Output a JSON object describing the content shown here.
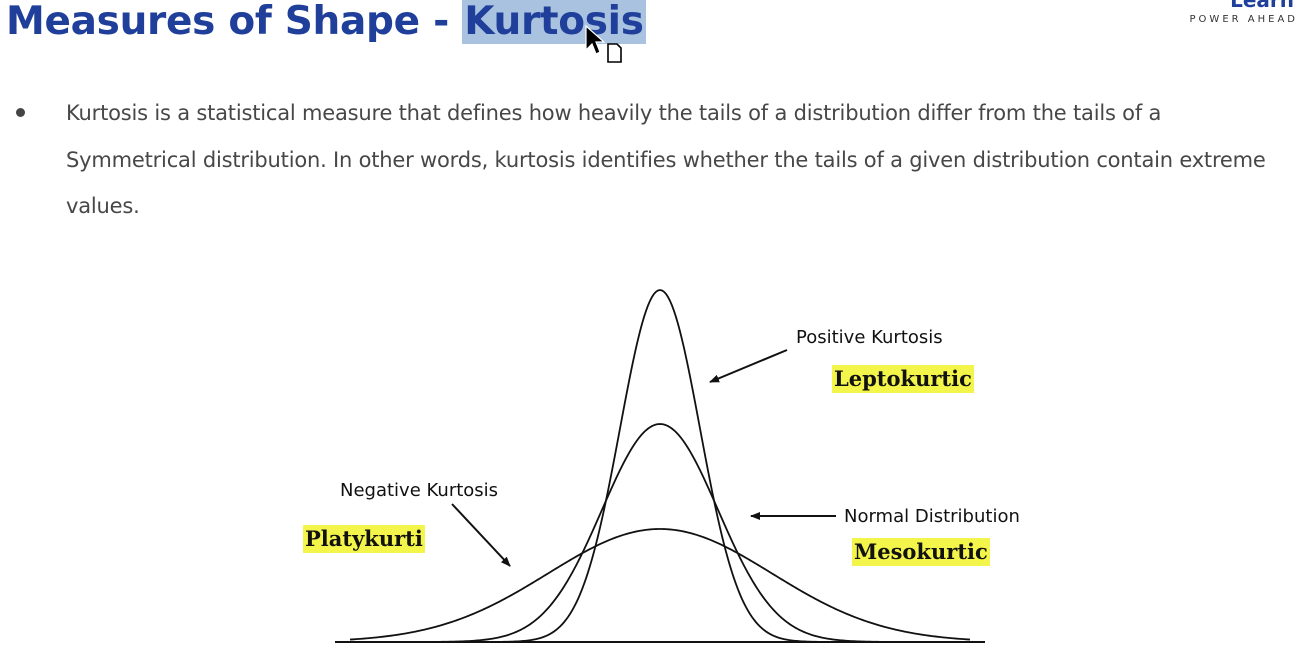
{
  "header": {
    "title_prefix": "Measures of Shape - ",
    "title_highlight": "Kurtosis",
    "logo_text": "Learn",
    "logo_tagline": "POWER AHEAD"
  },
  "content": {
    "bullet_text": "Kurtosis is a statistical measure that defines how heavily the tails of a distribution differ from the tails of a Symmetrical distribution. In other words, kurtosis identifies whether the tails of a given distribution contain extreme values."
  },
  "diagram": {
    "labels": {
      "positive": "Positive Kurtosis",
      "leptokurtic": "Leptokurtic",
      "normal": "Normal Distribution",
      "mesokurtic": "Mesokurtic",
      "negative": "Negative Kurtosis",
      "platykurtic": "Platykurti"
    },
    "highlight_color": "#f3f54a",
    "title_color": "#1f3f9a",
    "title_highlight_color": "#a8c2e0"
  }
}
